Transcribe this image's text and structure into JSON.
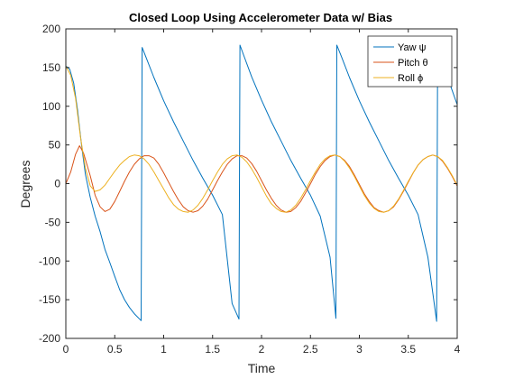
{
  "chart_data": {
    "type": "line",
    "title": "Closed Loop Using Accelerometer Data w/ Bias",
    "xlabel": "Time",
    "ylabel": "Degrees",
    "xlim": [
      0,
      4
    ],
    "ylim": [
      -200,
      200
    ],
    "xticks": [
      "0",
      "0.5",
      "1",
      "1.5",
      "2",
      "2.5",
      "3",
      "3.5",
      "4"
    ],
    "yticks": [
      "200",
      "150",
      "100",
      "50",
      "0",
      "-50",
      "-100",
      "-150",
      "-200"
    ],
    "grid": false,
    "legend_position": "top-right",
    "series": [
      {
        "name": "Yaw ψ",
        "color": "#0072BD",
        "points": [
          [
            0,
            152
          ],
          [
            0.04,
            148
          ],
          [
            0.08,
            130
          ],
          [
            0.12,
            95
          ],
          [
            0.16,
            50
          ],
          [
            0.2,
            12
          ],
          [
            0.25,
            -18
          ],
          [
            0.3,
            -42
          ],
          [
            0.35,
            -62
          ],
          [
            0.4,
            -85
          ],
          [
            0.45,
            -102
          ],
          [
            0.5,
            -120
          ],
          [
            0.55,
            -137
          ],
          [
            0.6,
            -150
          ],
          [
            0.65,
            -160
          ],
          [
            0.7,
            -168
          ],
          [
            0.77,
            -177
          ],
          [
            0.78,
            176
          ],
          [
            0.82,
            163
          ],
          [
            0.9,
            137
          ],
          [
            1.0,
            107
          ],
          [
            1.1,
            80
          ],
          [
            1.2,
            55
          ],
          [
            1.3,
            30
          ],
          [
            1.4,
            7
          ],
          [
            1.5,
            -15
          ],
          [
            1.6,
            -40
          ],
          [
            1.7,
            -155
          ],
          [
            1.77,
            -175
          ],
          [
            1.78,
            179
          ],
          [
            1.82,
            165
          ],
          [
            1.9,
            138
          ],
          [
            2.0,
            108
          ],
          [
            2.1,
            80
          ],
          [
            2.2,
            55
          ],
          [
            2.3,
            30
          ],
          [
            2.4,
            7
          ],
          [
            2.5,
            -15
          ],
          [
            2.6,
            -42
          ],
          [
            2.7,
            -95
          ],
          [
            2.76,
            -174
          ],
          [
            2.77,
            179
          ],
          [
            2.82,
            163
          ],
          [
            2.9,
            137
          ],
          [
            3.0,
            107
          ],
          [
            3.1,
            80
          ],
          [
            3.2,
            55
          ],
          [
            3.3,
            30
          ],
          [
            3.4,
            7
          ],
          [
            3.5,
            -15
          ],
          [
            3.6,
            -40
          ],
          [
            3.7,
            -95
          ],
          [
            3.79,
            -178
          ],
          [
            3.8,
            172
          ],
          [
            3.9,
            138
          ],
          [
            4.0,
            102
          ]
        ]
      },
      {
        "name": "Pitch θ",
        "color": "#D95319",
        "points": [
          [
            0,
            0
          ],
          [
            0.05,
            15
          ],
          [
            0.1,
            38
          ],
          [
            0.14,
            49
          ],
          [
            0.18,
            40
          ],
          [
            0.25,
            10
          ],
          [
            0.3,
            -15
          ],
          [
            0.35,
            -30
          ],
          [
            0.4,
            -36
          ],
          [
            0.45,
            -33
          ],
          [
            0.5,
            -23
          ],
          [
            0.55,
            -10
          ],
          [
            0.6,
            3
          ],
          [
            0.65,
            15
          ],
          [
            0.7,
            25
          ],
          [
            0.75,
            32
          ],
          [
            0.8,
            36
          ],
          [
            0.85,
            36
          ],
          [
            0.9,
            33
          ],
          [
            0.95,
            25
          ],
          [
            1.0,
            14
          ],
          [
            1.05,
            2
          ],
          [
            1.1,
            -10
          ],
          [
            1.15,
            -21
          ],
          [
            1.2,
            -30
          ],
          [
            1.25,
            -35
          ],
          [
            1.3,
            -37
          ],
          [
            1.35,
            -35
          ],
          [
            1.4,
            -29
          ],
          [
            1.45,
            -20
          ],
          [
            1.5,
            -8
          ],
          [
            1.55,
            4
          ],
          [
            1.6,
            15
          ],
          [
            1.65,
            25
          ],
          [
            1.7,
            32
          ],
          [
            1.75,
            36
          ],
          [
            1.8,
            36
          ],
          [
            1.85,
            33
          ],
          [
            1.9,
            26
          ],
          [
            1.95,
            16
          ],
          [
            2.0,
            4
          ],
          [
            2.05,
            -8
          ],
          [
            2.1,
            -19
          ],
          [
            2.15,
            -28
          ],
          [
            2.2,
            -34
          ],
          [
            2.25,
            -37
          ],
          [
            2.3,
            -36
          ],
          [
            2.35,
            -31
          ],
          [
            2.4,
            -23
          ],
          [
            2.45,
            -12
          ],
          [
            2.5,
            0
          ],
          [
            2.55,
            12
          ],
          [
            2.6,
            22
          ],
          [
            2.65,
            30
          ],
          [
            2.7,
            35
          ],
          [
            2.75,
            37
          ],
          [
            2.8,
            35
          ],
          [
            2.85,
            30
          ],
          [
            2.9,
            22
          ],
          [
            2.95,
            11
          ],
          [
            3.0,
            -1
          ],
          [
            3.05,
            -13
          ],
          [
            3.1,
            -23
          ],
          [
            3.15,
            -31
          ],
          [
            3.2,
            -35
          ],
          [
            3.25,
            -37
          ],
          [
            3.3,
            -35
          ],
          [
            3.35,
            -30
          ],
          [
            3.4,
            -21
          ],
          [
            3.45,
            -10
          ],
          [
            3.5,
            2
          ],
          [
            3.55,
            14
          ],
          [
            3.6,
            24
          ],
          [
            3.65,
            31
          ],
          [
            3.7,
            35
          ],
          [
            3.75,
            37
          ],
          [
            3.8,
            35
          ],
          [
            3.85,
            29
          ],
          [
            3.9,
            20
          ],
          [
            3.95,
            9
          ],
          [
            4.0,
            -3
          ]
        ]
      },
      {
        "name": "Roll ϕ",
        "color": "#EDB120",
        "points": [
          [
            0,
            152
          ],
          [
            0.05,
            140
          ],
          [
            0.1,
            110
          ],
          [
            0.15,
            60
          ],
          [
            0.2,
            20
          ],
          [
            0.25,
            -3
          ],
          [
            0.3,
            -10
          ],
          [
            0.35,
            -8
          ],
          [
            0.4,
            -2
          ],
          [
            0.45,
            7
          ],
          [
            0.5,
            16
          ],
          [
            0.55,
            24
          ],
          [
            0.6,
            30
          ],
          [
            0.65,
            35
          ],
          [
            0.7,
            37
          ],
          [
            0.75,
            36
          ],
          [
            0.8,
            32
          ],
          [
            0.85,
            25
          ],
          [
            0.9,
            15
          ],
          [
            0.95,
            4
          ],
          [
            1.0,
            -7
          ],
          [
            1.05,
            -18
          ],
          [
            1.1,
            -27
          ],
          [
            1.15,
            -33
          ],
          [
            1.2,
            -36
          ],
          [
            1.25,
            -37
          ],
          [
            1.3,
            -34
          ],
          [
            1.35,
            -28
          ],
          [
            1.4,
            -19
          ],
          [
            1.45,
            -8
          ],
          [
            1.5,
            4
          ],
          [
            1.55,
            15
          ],
          [
            1.6,
            25
          ],
          [
            1.65,
            32
          ],
          [
            1.7,
            36
          ],
          [
            1.75,
            37
          ],
          [
            1.8,
            34
          ],
          [
            1.85,
            28
          ],
          [
            1.9,
            19
          ],
          [
            1.95,
            8
          ],
          [
            2.0,
            -4
          ],
          [
            2.05,
            -16
          ],
          [
            2.1,
            -26
          ],
          [
            2.15,
            -32
          ],
          [
            2.2,
            -36
          ],
          [
            2.25,
            -37
          ],
          [
            2.3,
            -34
          ],
          [
            2.35,
            -28
          ],
          [
            2.4,
            -19
          ],
          [
            2.45,
            -8
          ],
          [
            2.5,
            4
          ],
          [
            2.55,
            15
          ],
          [
            2.6,
            25
          ],
          [
            2.65,
            32
          ],
          [
            2.7,
            36
          ],
          [
            2.75,
            37
          ],
          [
            2.8,
            35
          ],
          [
            2.85,
            29
          ],
          [
            2.9,
            20
          ],
          [
            2.95,
            9
          ],
          [
            3.0,
            -3
          ],
          [
            3.05,
            -15
          ],
          [
            3.1,
            -25
          ],
          [
            3.15,
            -32
          ],
          [
            3.2,
            -36
          ],
          [
            3.25,
            -37
          ],
          [
            3.3,
            -35
          ],
          [
            3.35,
            -29
          ],
          [
            3.4,
            -20
          ],
          [
            3.45,
            -9
          ],
          [
            3.5,
            3
          ],
          [
            3.55,
            14
          ],
          [
            3.6,
            24
          ],
          [
            3.65,
            31
          ],
          [
            3.7,
            35
          ],
          [
            3.75,
            37
          ],
          [
            3.8,
            35
          ],
          [
            3.85,
            30
          ],
          [
            3.9,
            21
          ],
          [
            3.95,
            10
          ],
          [
            4.0,
            -2
          ]
        ]
      }
    ]
  }
}
